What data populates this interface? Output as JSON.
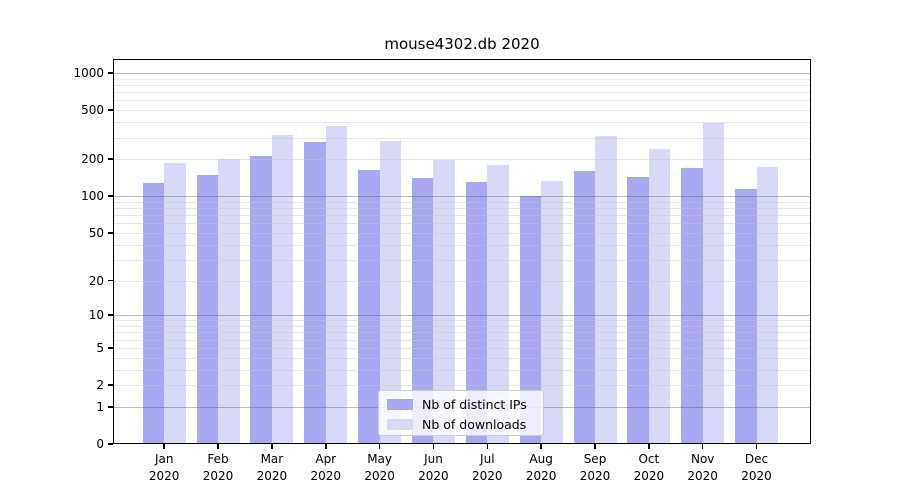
{
  "title": "mouse4302.db 2020",
  "legend": {
    "items": [
      {
        "label": "Nb of distinct IPs",
        "series": "distinct_ips"
      },
      {
        "label": "Nb of downloads",
        "series": "downloads"
      }
    ]
  },
  "colors": {
    "distinct_ips_bar": "#a7a7f2",
    "downloads_bar": "#d8d8f8",
    "major_gridline": "rgba(90,90,90,0.42)",
    "minor_gridline": "rgba(200,200,200,0.45)",
    "axis": "#000000",
    "legend_border": "#cccccc"
  },
  "chart_data": {
    "type": "bar",
    "title": "mouse4302.db 2020",
    "y_scale": "log10(value+1), 0 at baseline",
    "ylim": [
      0,
      1280
    ],
    "y_ticks": [
      0,
      1,
      2,
      5,
      10,
      20,
      50,
      100,
      200,
      500,
      1000
    ],
    "grid": "horizontal major (powers of 10, darker) and minor (2-9 per decade, lighter)",
    "legend_position": "inside bottom-center",
    "categories": [
      "Jan",
      "Feb",
      "Mar",
      "Apr",
      "May",
      "Jun",
      "Jul",
      "Aug",
      "Sep",
      "Oct",
      "Nov",
      "Dec"
    ],
    "category_year": "2020",
    "series": [
      {
        "name": "Nb of distinct IPs",
        "values": [
          128,
          150,
          212,
          278,
          163,
          141,
          130,
          100,
          159,
          142,
          170,
          114
        ]
      },
      {
        "name": "Nb of downloads",
        "values": [
          188,
          200,
          315,
          375,
          279,
          198,
          181,
          134,
          311,
          244,
          397,
          172
        ]
      }
    ]
  }
}
